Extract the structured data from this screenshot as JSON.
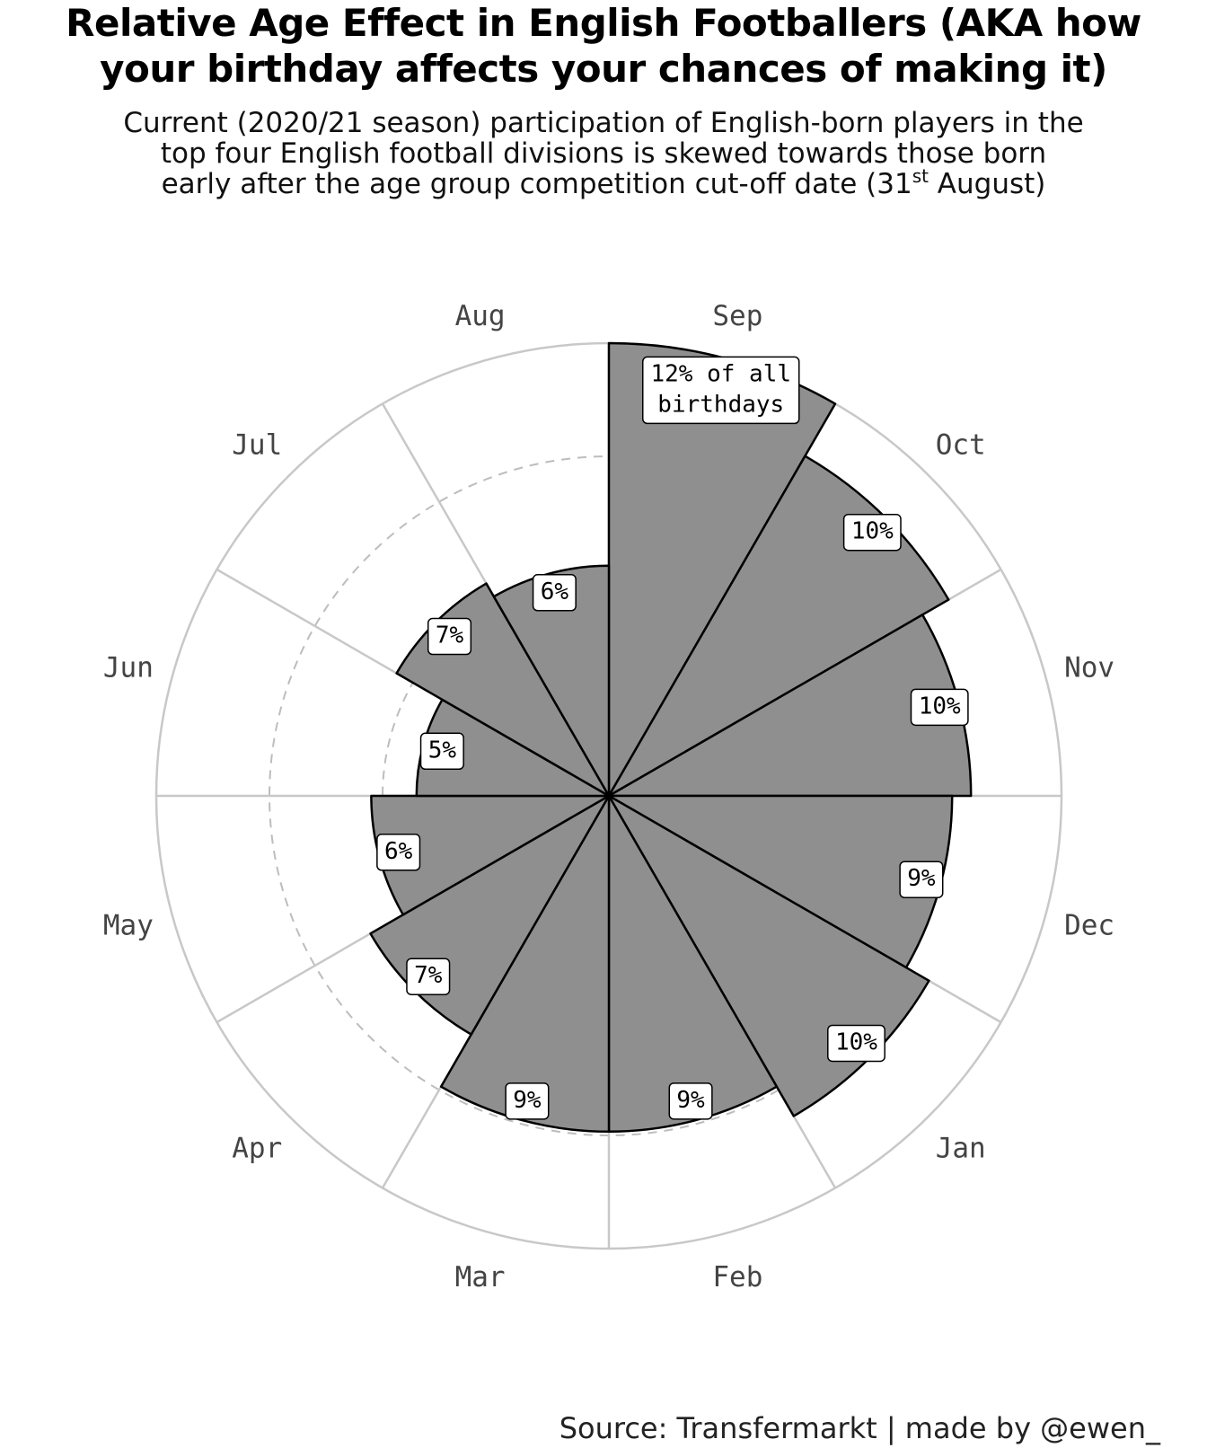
{
  "title": {
    "line1": "Relative Age Effect in English Footballers (AKA how",
    "line2": "your birthday affects your chances of making it)"
  },
  "subtitle": {
    "line1": "Current (2020/21 season) participation of English-born players in the",
    "line2": "top four English football divisions is skewed towards those born",
    "line3_pre": "early after the age group competition cut-off date (31",
    "line3_sup": "st",
    "line3_post": " August)"
  },
  "source": "Source: Transfermarkt | made by @ewen_",
  "chart_data": {
    "type": "polar-bar",
    "categories": [
      "Sep",
      "Oct",
      "Nov",
      "Dec",
      "Jan",
      "Feb",
      "Mar",
      "Apr",
      "May",
      "Jun",
      "Jul",
      "Aug"
    ],
    "values": [
      12.0,
      10.4,
      9.6,
      9.1,
      9.8,
      8.9,
      8.9,
      7.3,
      6.3,
      5.1,
      6.5,
      6.1
    ],
    "labels": [
      "12% of all birthdays",
      "10%",
      "10%",
      "9%",
      "10%",
      "9%",
      "9%",
      "7%",
      "6%",
      "5%",
      "7%",
      "6%"
    ],
    "rlim": [
      0,
      12
    ],
    "gridlines": [
      3,
      6,
      9
    ],
    "start_month": "Sep",
    "direction": "clockwise",
    "bar_color": "#8f8f8f",
    "bar_edge_color": "#000000",
    "grid_color": "#c8c8c8"
  }
}
